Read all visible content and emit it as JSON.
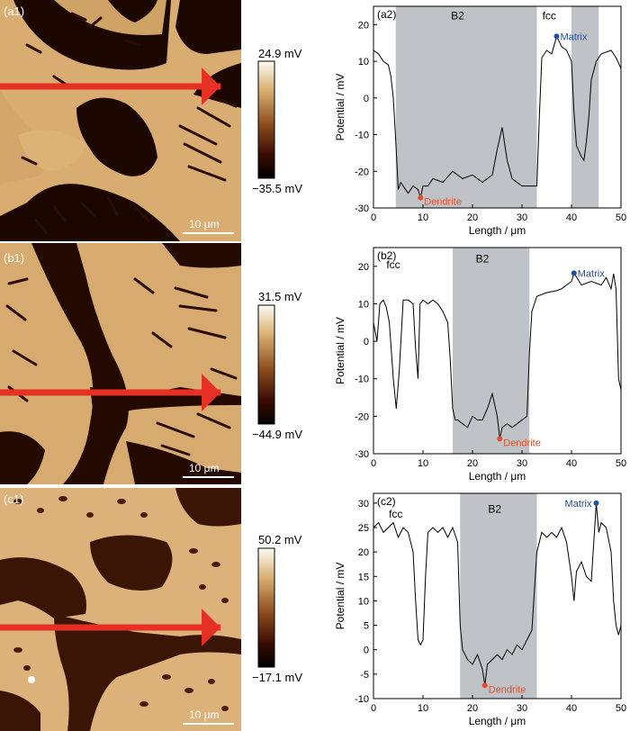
{
  "panels": [
    {
      "map_label": "(a1)",
      "scalebar_label": "10 μm",
      "colorbar": {
        "max_label": "24.9 mV",
        "min_label": "−35.5 mV",
        "max": 24.9,
        "min": -35.5
      }
    },
    {
      "map_label": "(b1)",
      "scalebar_label": "10 μm",
      "colorbar": {
        "max_label": "31.5 mV",
        "min_label": "−44.9 mV",
        "max": 31.5,
        "min": -44.9
      }
    },
    {
      "map_label": "(c1)",
      "scalebar_label": "10 μm",
      "colorbar": {
        "max_label": "50.2 mV",
        "min_label": "−17.1 mV",
        "max": 50.2,
        "min": -17.1
      }
    }
  ],
  "chart_data": [
    {
      "type": "line",
      "panel_label": "(a2)",
      "xlabel": "Length / μm",
      "ylabel": "Potential / mV",
      "xlim": [
        0,
        50
      ],
      "ylim": [
        -30,
        25
      ],
      "xticks": [
        0,
        10,
        20,
        30,
        40,
        50
      ],
      "yticks": [
        -30,
        -20,
        -10,
        0,
        10,
        20
      ],
      "shaded_regions": [
        {
          "x0": 4.5,
          "x1": 33
        },
        {
          "x0": 40,
          "x1": 45.5
        }
      ],
      "region_labels": [
        {
          "text": "B2",
          "x": 17,
          "y": 21.5
        },
        {
          "text": "fcc",
          "x": 35.5,
          "y": 21.5
        }
      ],
      "points": [
        {
          "name": "Matrix",
          "x": 37,
          "y": 16.8,
          "color": "#1f4e9c"
        },
        {
          "name": "Dendrite",
          "x": 9.5,
          "y": -27.2,
          "color": "#e0502a"
        }
      ],
      "series": [
        {
          "x": [
            0,
            1,
            2,
            3,
            3.5,
            4,
            4.5,
            5,
            5.5,
            6,
            7,
            8,
            9,
            9.5,
            10,
            11,
            12,
            14,
            16,
            18,
            20,
            22,
            24,
            25,
            26,
            27,
            28,
            30,
            32,
            33,
            33.5,
            34,
            35,
            36,
            37,
            38,
            39,
            40,
            40.5,
            41,
            42,
            42.5,
            43,
            43.5,
            44,
            45,
            45.5,
            46,
            47,
            48,
            49,
            50
          ],
          "y": [
            13,
            12,
            10,
            9,
            6,
            0,
            -12,
            -25,
            -23,
            -24,
            -26,
            -24,
            -25,
            -27.2,
            -24,
            -24,
            -22,
            -23,
            -20,
            -22,
            -21,
            -23,
            -21,
            -14,
            -8,
            -17,
            -22,
            -24,
            -24,
            -24,
            -5,
            11,
            13,
            12,
            16.8,
            14,
            13,
            10,
            -4,
            -13,
            -16,
            -17,
            -12,
            -5,
            5,
            10,
            11,
            12,
            12.5,
            13,
            11,
            8
          ]
        }
      ]
    },
    {
      "type": "line",
      "panel_label": "(b2)",
      "xlabel": "Length / μm",
      "ylabel": "Potential / mV",
      "xlim": [
        0,
        50
      ],
      "ylim": [
        -30,
        25
      ],
      "xticks": [
        0,
        10,
        20,
        30,
        40,
        50
      ],
      "yticks": [
        -30,
        -20,
        -10,
        0,
        10,
        20
      ],
      "shaded_regions": [
        {
          "x0": 16,
          "x1": 31.5
        }
      ],
      "region_labels": [
        {
          "text": "fcc",
          "x": 4,
          "y": 19.5
        },
        {
          "text": "B2",
          "x": 22,
          "y": 21
        }
      ],
      "points": [
        {
          "name": "Matrix",
          "x": 40.5,
          "y": 18.2,
          "color": "#1f4e9c"
        },
        {
          "name": "Dendrite",
          "x": 25.5,
          "y": -26,
          "color": "#e0502a"
        }
      ],
      "series": [
        {
          "x": [
            0,
            0.7,
            1.3,
            2,
            2.6,
            3.2,
            4,
            4.6,
            5.2,
            6,
            7,
            8,
            8.5,
            9,
            9.4,
            10,
            11,
            12,
            13,
            14,
            15,
            15.5,
            16,
            16.5,
            17,
            18,
            19,
            20,
            21,
            22,
            23,
            24,
            25,
            25.5,
            26,
            27,
            28,
            29,
            30,
            31,
            31.5,
            32,
            33,
            35,
            37,
            38,
            40,
            40.5,
            42,
            44,
            46,
            47,
            48,
            48.5,
            49,
            49.5,
            50
          ],
          "y": [
            5,
            0,
            10,
            11,
            9,
            5,
            -10,
            -18,
            -8,
            11,
            11,
            10,
            -2,
            -10,
            10,
            11,
            10,
            11,
            10,
            8,
            5,
            -5,
            -18,
            -21,
            -21,
            -22,
            -23,
            -20,
            -21,
            -21,
            -18,
            -14,
            -20,
            -26,
            -23,
            -22,
            -23,
            -22,
            -21,
            -20,
            -3,
            8,
            12,
            13,
            13.5,
            14,
            16,
            18.2,
            15,
            16,
            15,
            17,
            14,
            18,
            14,
            -10,
            -13
          ]
        }
      ]
    },
    {
      "type": "line",
      "panel_label": "(c2)",
      "xlabel": "Length / μm",
      "ylabel": "Potential / mV",
      "xlim": [
        0,
        50
      ],
      "ylim": [
        -10,
        32
      ],
      "xticks": [
        0,
        10,
        20,
        30,
        40,
        50
      ],
      "yticks": [
        -10,
        -5,
        0,
        5,
        10,
        15,
        20,
        25,
        30
      ],
      "shaded_regions": [
        {
          "x0": 17.5,
          "x1": 33
        }
      ],
      "region_labels": [
        {
          "text": "fcc",
          "x": 4.5,
          "y": 27
        },
        {
          "text": "B2",
          "x": 24.5,
          "y": 28
        }
      ],
      "points": [
        {
          "name": "Matrix",
          "x": 45,
          "y": 30,
          "color": "#1f4e9c"
        },
        {
          "name": "Dendrite",
          "x": 22.5,
          "y": -7.3,
          "color": "#e0502a"
        }
      ],
      "series": [
        {
          "x": [
            0,
            1,
            2,
            3,
            4,
            5,
            6,
            7,
            8,
            8.5,
            9,
            9.5,
            10,
            10.5,
            11,
            12,
            13,
            14,
            15,
            16,
            17,
            17.5,
            18,
            19,
            20,
            21,
            22,
            22.5,
            23,
            24,
            25,
            26,
            27,
            28,
            29,
            30,
            31,
            32,
            33,
            34,
            35,
            36,
            37,
            38,
            39,
            40,
            40.5,
            41,
            42,
            43,
            44,
            45,
            45.5,
            46,
            47,
            48,
            48.5,
            49,
            49.5,
            50
          ],
          "y": [
            25,
            26,
            24,
            25,
            26,
            23,
            25,
            24,
            20,
            10,
            2,
            1,
            2,
            15,
            24,
            25,
            24,
            25,
            23,
            25,
            22,
            5,
            0,
            -2,
            -3,
            -1,
            -4,
            -7.3,
            -3,
            -2,
            -1,
            -2,
            0,
            -1,
            1,
            0,
            2,
            4,
            20,
            24,
            23,
            24,
            23,
            25,
            22,
            15,
            10,
            16,
            18,
            15,
            14,
            30,
            24,
            26,
            25,
            20,
            10,
            5,
            3,
            5
          ]
        }
      ]
    }
  ]
}
